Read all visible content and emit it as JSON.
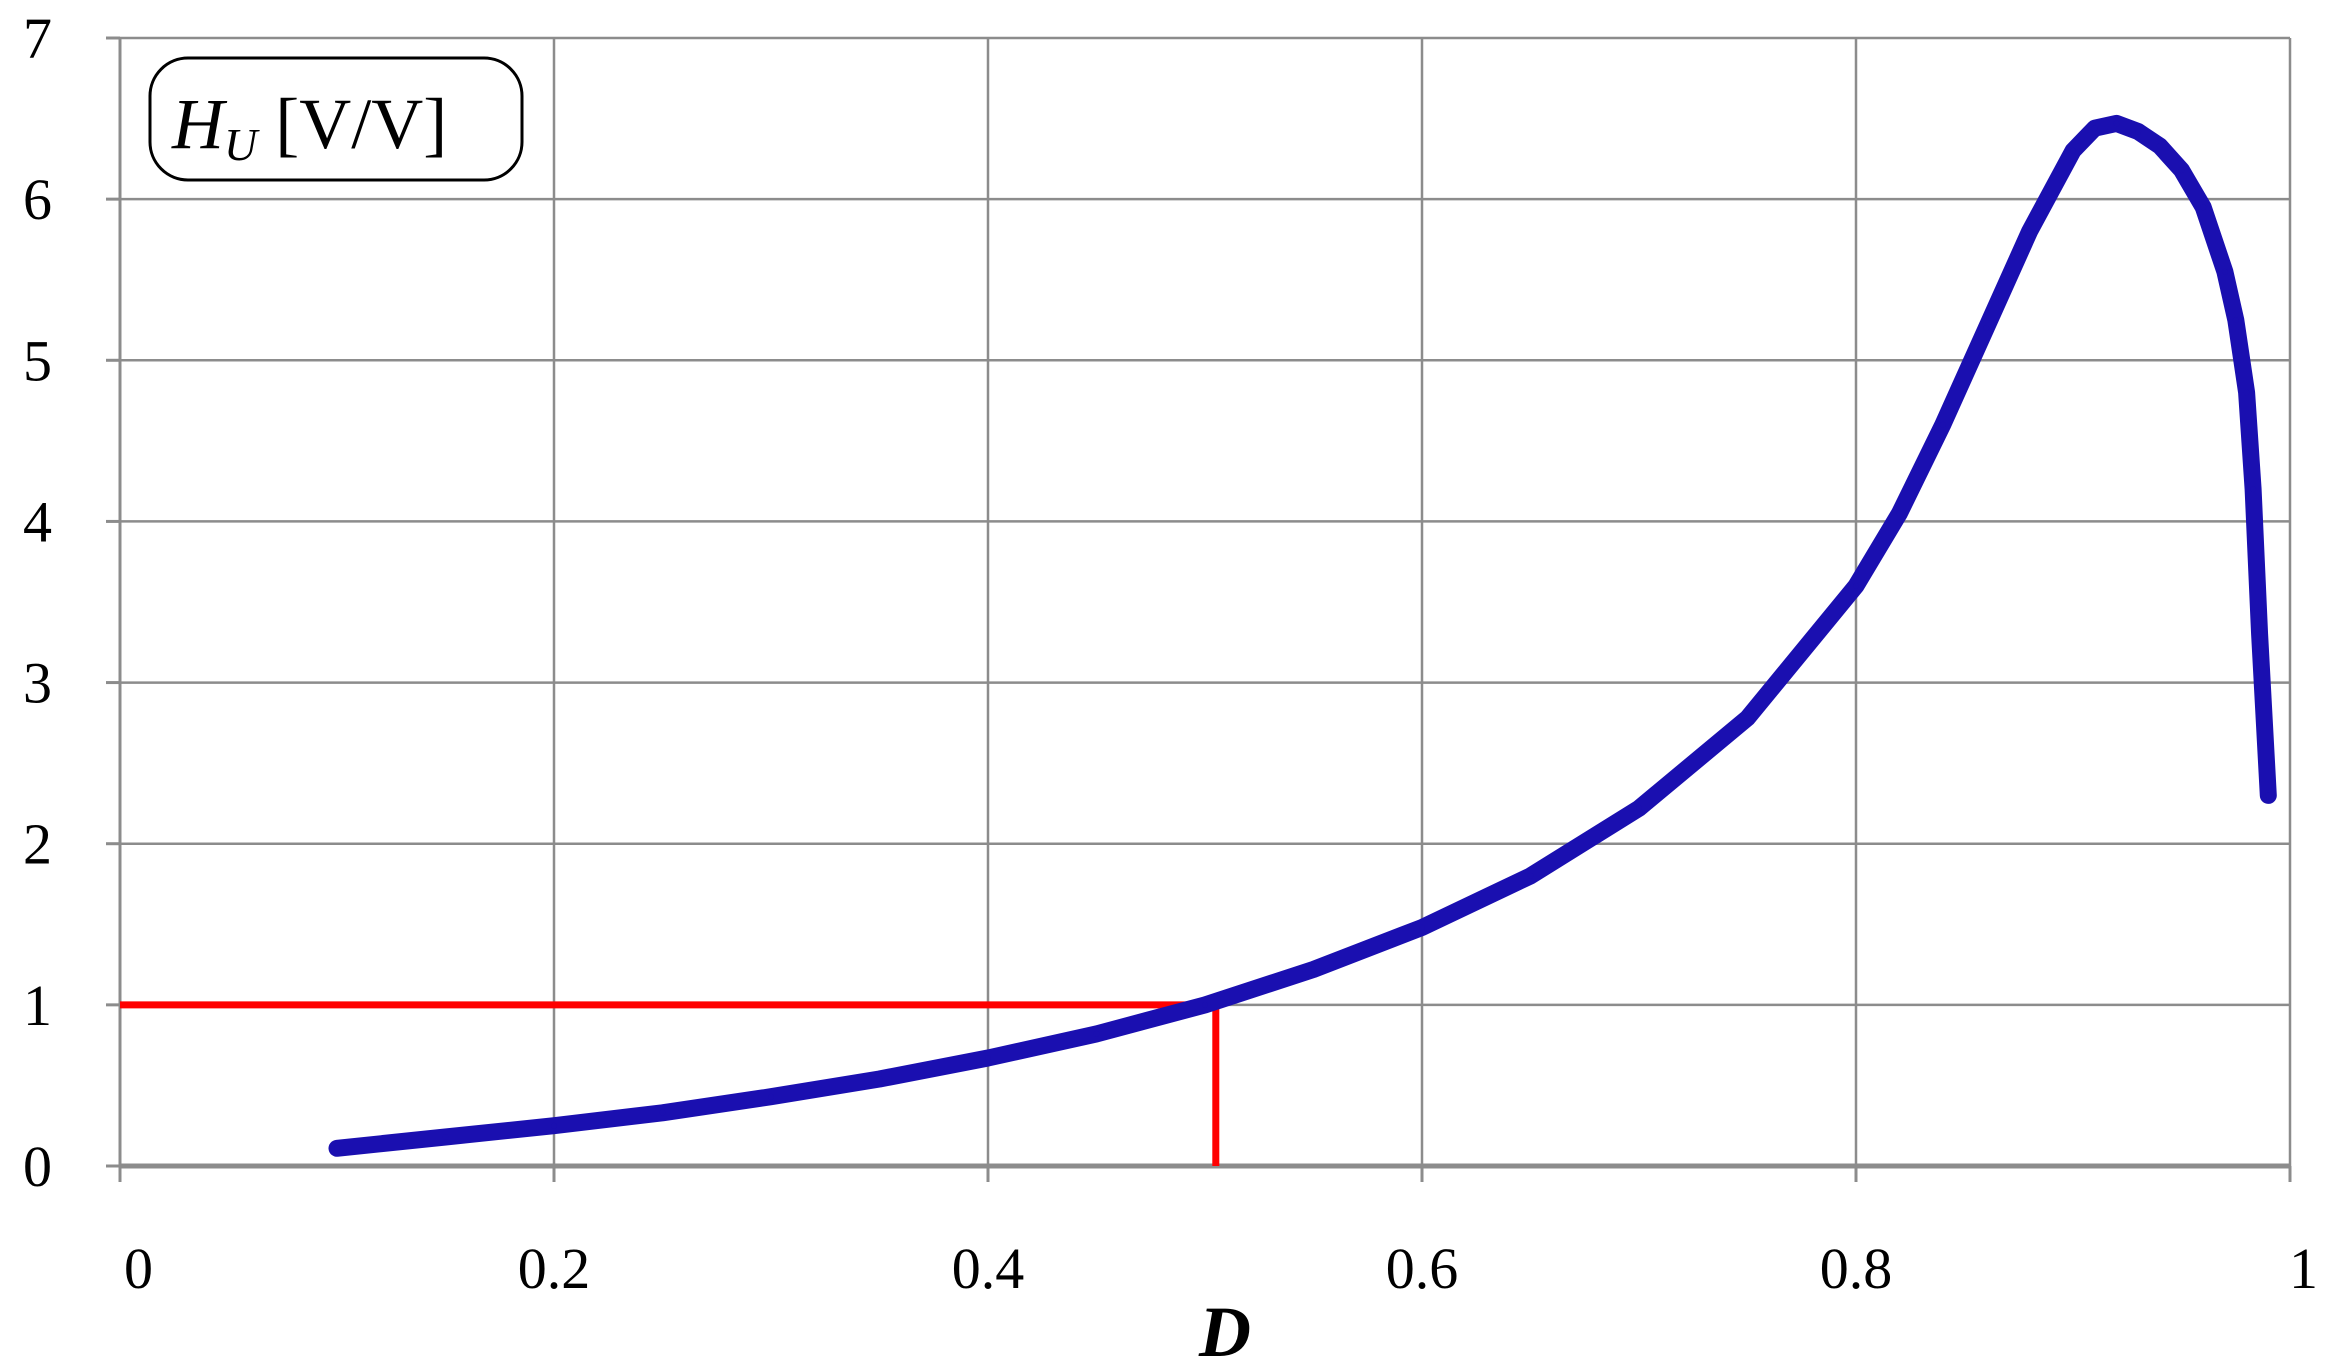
{
  "chart_data": {
    "type": "line",
    "xlabel": "D",
    "ylabel": {
      "symbol": "H",
      "subscript": "U",
      "unit": " [V/V]"
    },
    "xlim": [
      0,
      1
    ],
    "ylim": [
      0,
      7
    ],
    "xticks": [
      {
        "value": 0,
        "label": "0"
      },
      {
        "value": 0.2,
        "label": "0.2"
      },
      {
        "value": 0.4,
        "label": "0.4"
      },
      {
        "value": 0.6,
        "label": "0.6"
      },
      {
        "value": 0.8,
        "label": "0.8"
      },
      {
        "value": 1,
        "label": "1"
      }
    ],
    "yticks": [
      {
        "value": 0,
        "label": "0"
      },
      {
        "value": 1,
        "label": "1"
      },
      {
        "value": 2,
        "label": "2"
      },
      {
        "value": 3,
        "label": "3"
      },
      {
        "value": 4,
        "label": "4"
      },
      {
        "value": 5,
        "label": "5"
      },
      {
        "value": 6,
        "label": "6"
      },
      {
        "value": 7,
        "label": "7"
      }
    ],
    "grid": true,
    "series": [
      {
        "color": "#1a0fb0",
        "x": [
          0.1,
          0.15,
          0.2,
          0.25,
          0.3,
          0.35,
          0.4,
          0.45,
          0.5,
          0.55,
          0.6,
          0.65,
          0.7,
          0.75,
          0.8,
          0.82,
          0.84,
          0.86,
          0.88,
          0.9,
          0.91,
          0.92,
          0.93,
          0.94,
          0.95,
          0.96,
          0.97,
          0.975,
          0.98,
          0.983,
          0.986,
          0.99
        ],
        "y": [
          0.11,
          0.18,
          0.25,
          0.33,
          0.43,
          0.54,
          0.67,
          0.82,
          1.0,
          1.22,
          1.48,
          1.8,
          2.22,
          2.78,
          3.6,
          4.05,
          4.6,
          5.2,
          5.8,
          6.3,
          6.44,
          6.47,
          6.42,
          6.33,
          6.18,
          5.95,
          5.55,
          5.25,
          4.8,
          4.2,
          3.3,
          2.3
        ]
      }
    ],
    "reference_lines": [
      {
        "color": "#ff0000",
        "points": [
          [
            0,
            1
          ],
          [
            0.505,
            1
          ],
          [
            0.505,
            0
          ]
        ]
      }
    ]
  }
}
